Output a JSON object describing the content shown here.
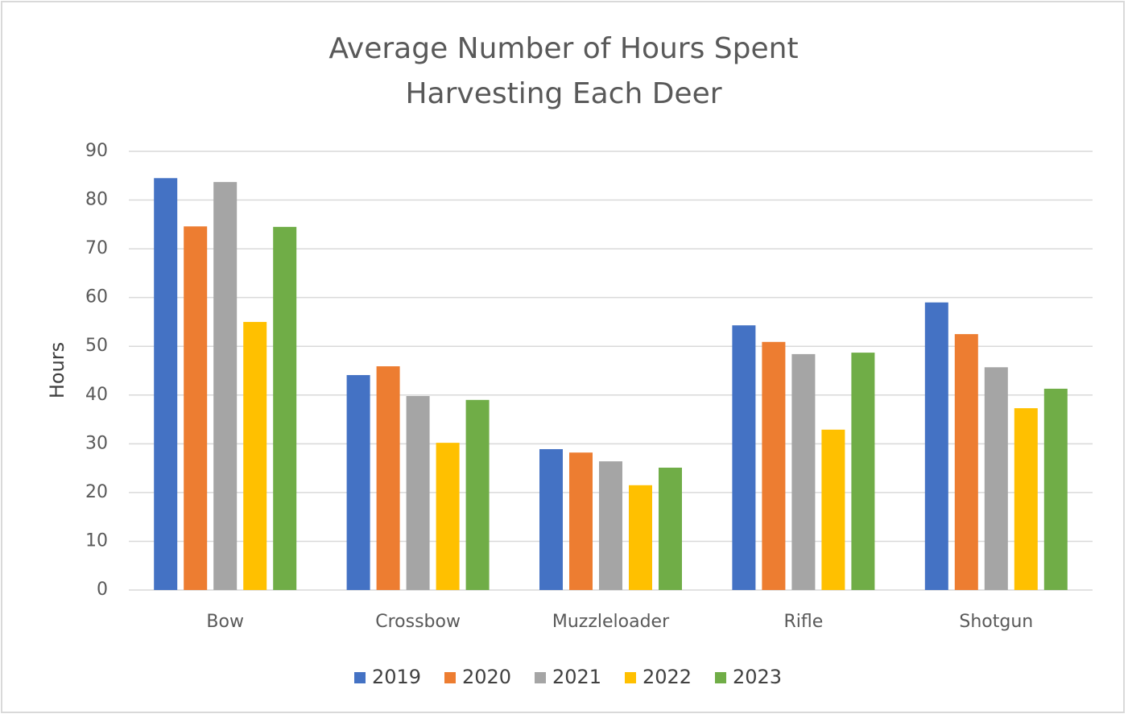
{
  "chart_data": {
    "type": "bar",
    "title": [
      "Average Number of Hours Spent",
      "Harvesting Each Deer"
    ],
    "y_label": "Hours",
    "categories": [
      "Bow",
      "Crossbow",
      "Muzzleloader",
      "Rifle",
      "Shotgun"
    ],
    "series": [
      {
        "name": "2019",
        "color": "#4472c4",
        "values": [
          84.5,
          44.1,
          28.9,
          54.3,
          59.0
        ]
      },
      {
        "name": "2020",
        "color": "#ed7d31",
        "values": [
          74.6,
          45.9,
          28.2,
          50.9,
          52.5
        ]
      },
      {
        "name": "2021",
        "color": "#a5a5a5",
        "values": [
          83.7,
          39.8,
          26.4,
          48.4,
          45.7
        ]
      },
      {
        "name": "2022",
        "color": "#ffc000",
        "values": [
          55.0,
          30.2,
          21.5,
          32.9,
          37.3
        ]
      },
      {
        "name": "2023",
        "color": "#70ad47",
        "values": [
          74.5,
          39.0,
          25.1,
          48.7,
          41.3
        ]
      }
    ],
    "ylim": [
      0,
      90
    ],
    "yticks": [
      0,
      10,
      20,
      30,
      40,
      50,
      60,
      70,
      80,
      90
    ],
    "grid": true,
    "legend": "bottom"
  }
}
